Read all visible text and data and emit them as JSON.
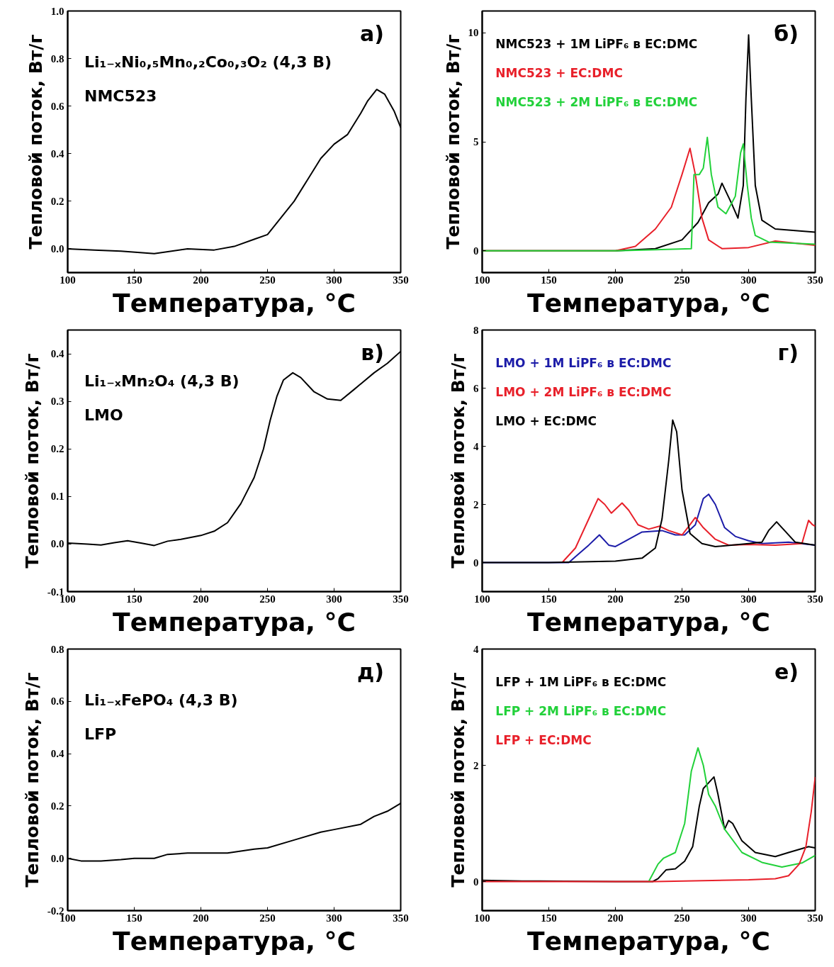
{
  "chart_data": [
    {
      "type": "line",
      "title": "а)",
      "xlabel": "Температура, °C",
      "ylabel": "Тепловой поток, Вт/г",
      "annotations": [
        "Li₁₋ₓNi₀,₅Mn₀,₂Co₀,₃O₂ (4,3 В)",
        "NMC523"
      ],
      "xlim": [
        100,
        350
      ],
      "xticks": [
        100,
        150,
        200,
        250,
        300,
        350
      ],
      "ylim": [
        -0.1,
        1.0
      ],
      "yticks": [
        {
          "value": 0,
          "label": "0.0"
        },
        {
          "value": 0.2,
          "label": "0.2"
        },
        {
          "value": 0.4,
          "label": "0.4"
        },
        {
          "value": 0.6,
          "label": "0.6"
        },
        {
          "value": 0.8,
          "label": "0.8"
        },
        {
          "value": 1.0,
          "label": "1.0"
        }
      ],
      "grid": false,
      "legend": false,
      "series": [
        {
          "color": "#000000",
          "x": [
            100,
            120,
            140,
            165,
            190,
            210,
            225,
            240,
            250,
            260,
            270,
            280,
            290,
            300,
            310,
            320,
            325,
            332,
            338,
            345,
            350
          ],
          "values": [
            0,
            -0.005,
            -0.01,
            -0.02,
            0,
            -0.005,
            0.01,
            0.04,
            0.06,
            0.13,
            0.2,
            0.29,
            0.38,
            0.44,
            0.48,
            0.57,
            0.62,
            0.67,
            0.65,
            0.58,
            0.51
          ]
        }
      ]
    },
    {
      "type": "line",
      "title": "б)",
      "xlabel": "Температура, °C",
      "ylabel": "Тепловой поток, Вт/г",
      "xlim": [
        100,
        350
      ],
      "xticks": [
        100,
        150,
        200,
        250,
        300,
        350
      ],
      "ylim": [
        -1,
        11
      ],
      "yticks": [
        0,
        5,
        10
      ],
      "grid": false,
      "legend": "top left",
      "series": [
        {
          "name": "NMC523 + 1M LiPF₆ в EC:DMC",
          "color": "#000000",
          "x": [
            100,
            150,
            200,
            230,
            250,
            262,
            270,
            277,
            280,
            287,
            292,
            296,
            298,
            300,
            302,
            305,
            310,
            320,
            350
          ],
          "values": [
            0,
            0,
            0,
            0.1,
            0.5,
            1.3,
            2.2,
            2.6,
            3.1,
            2.2,
            1.5,
            3,
            7,
            9.9,
            7,
            3,
            1.4,
            1.0,
            0.85
          ]
        },
        {
          "name": "NMC523 + EC:DMC",
          "color": "#e8202a",
          "x": [
            100,
            150,
            200,
            215,
            230,
            242,
            250,
            256,
            260,
            265,
            270,
            280,
            300,
            320,
            350
          ],
          "values": [
            0,
            0,
            0,
            0.2,
            1.0,
            2.0,
            3.5,
            4.7,
            3.5,
            1.5,
            0.5,
            0.1,
            0.15,
            0.45,
            0.25
          ]
        },
        {
          "name": "NMC523 + 2M LiPF₆ в EC:DMC",
          "color": "#22d13a",
          "x": [
            100,
            150,
            200,
            230,
            257,
            259,
            263,
            266,
            269,
            272,
            277,
            283,
            290,
            294,
            296,
            299,
            302,
            305,
            315,
            350
          ],
          "values": [
            0,
            0,
            0,
            0.05,
            0.1,
            3.5,
            3.5,
            3.8,
            5.2,
            3.5,
            2.0,
            1.7,
            2.5,
            4.5,
            4.9,
            3,
            1.5,
            0.7,
            0.4,
            0.3
          ]
        }
      ]
    },
    {
      "type": "line",
      "title": "в)",
      "xlabel": "Температура, °C",
      "ylabel": "Тепловой поток, Вт/г",
      "annotations": [
        "Li₁₋ₓMn₂O₄ (4,3 В)",
        "LMO"
      ],
      "xlim": [
        100,
        350
      ],
      "xticks": [
        100,
        150,
        200,
        250,
        300,
        350
      ],
      "ylim": [
        -0.1,
        0.45
      ],
      "yticks": [
        {
          "value": -0.1,
          "label": "-0.1"
        },
        {
          "value": 0,
          "label": "0.0"
        },
        0.1,
        0.2,
        0.3,
        0.4
      ],
      "grid": false,
      "legend": false,
      "series": [
        {
          "color": "#000000",
          "x": [
            100,
            115,
            125,
            135,
            145,
            155,
            165,
            175,
            185,
            200,
            210,
            220,
            230,
            240,
            247,
            252,
            257,
            262,
            269,
            275,
            285,
            295,
            305,
            315,
            330,
            340,
            350
          ],
          "values": [
            0.002,
            0.0,
            -0.002,
            0.003,
            0.007,
            0.002,
            -0.003,
            0.006,
            0.01,
            0.018,
            0.027,
            0.045,
            0.085,
            0.14,
            0.2,
            0.26,
            0.31,
            0.345,
            0.36,
            0.35,
            0.32,
            0.305,
            0.302,
            0.325,
            0.36,
            0.38,
            0.405
          ]
        }
      ]
    },
    {
      "type": "line",
      "title": "г)",
      "xlabel": "Температура, °C",
      "ylabel": "Тепловой поток, Вт/г",
      "xlim": [
        100,
        350
      ],
      "xticks": [
        100,
        150,
        200,
        250,
        300,
        350
      ],
      "ylim": [
        -1,
        8
      ],
      "yticks": [
        0,
        2,
        4,
        6,
        8
      ],
      "grid": false,
      "legend": "top left",
      "series": [
        {
          "name": "LMO + 1M LiPF₆ в EC:DMC",
          "color": "#1c1ca8",
          "x": [
            100,
            165,
            170,
            180,
            188,
            195,
            200,
            210,
            220,
            235,
            245,
            252,
            260,
            266,
            270,
            275,
            282,
            290,
            300,
            310,
            330,
            350
          ],
          "values": [
            0,
            0,
            0.2,
            0.6,
            0.95,
            0.6,
            0.55,
            0.8,
            1.05,
            1.1,
            0.95,
            0.95,
            1.3,
            2.2,
            2.35,
            2.0,
            1.2,
            0.9,
            0.75,
            0.65,
            0.7,
            0.6
          ]
        },
        {
          "name": "LMO + 2M LiPF₆ в EC:DMC",
          "color": "#e8202a",
          "x": [
            160,
            170,
            180,
            187,
            192,
            197,
            205,
            210,
            217,
            225,
            233,
            240,
            250,
            256,
            260,
            266,
            275,
            285,
            300,
            320,
            340,
            345,
            348,
            350
          ],
          "values": [
            0,
            0.5,
            1.5,
            2.2,
            2.0,
            1.7,
            2.05,
            1.8,
            1.3,
            1.15,
            1.25,
            1.1,
            0.95,
            1.3,
            1.55,
            1.2,
            0.8,
            0.6,
            0.62,
            0.6,
            0.65,
            1.45,
            1.3,
            1.25
          ]
        },
        {
          "name": "LMO + EC:DMC",
          "color": "#000000",
          "x": [
            100,
            150,
            200,
            220,
            230,
            235,
            240,
            243,
            246,
            250,
            256,
            265,
            275,
            300,
            310,
            315,
            321,
            327,
            335,
            350
          ],
          "values": [
            0,
            0,
            0.05,
            0.15,
            0.5,
            1.5,
            3.5,
            4.9,
            4.5,
            2.5,
            1.0,
            0.65,
            0.55,
            0.65,
            0.7,
            1.1,
            1.4,
            1.1,
            0.7,
            0.6
          ]
        }
      ]
    },
    {
      "type": "line",
      "title": "д)",
      "xlabel": "Температура, °C",
      "ylabel": "Тепловой поток, Вт/г",
      "annotations": [
        "Li₁₋ₓFePO₄ (4,3 В)",
        "LFP"
      ],
      "xlim": [
        100,
        350
      ],
      "xticks": [
        100,
        150,
        200,
        250,
        300,
        350
      ],
      "ylim": [
        -0.2,
        0.8
      ],
      "yticks": [
        {
          "value": -0.2,
          "label": "-0.2"
        },
        {
          "value": 0,
          "label": "0.0"
        },
        0.2,
        0.4,
        0.6,
        0.8
      ],
      "grid": false,
      "legend": false,
      "series": [
        {
          "color": "#000000",
          "x": [
            100,
            110,
            125,
            140,
            150,
            165,
            175,
            190,
            200,
            220,
            240,
            250,
            270,
            290,
            300,
            320,
            330,
            340,
            350
          ],
          "values": [
            0.0,
            -0.01,
            -0.01,
            -0.005,
            0.0,
            0.0,
            0.015,
            0.02,
            0.02,
            0.02,
            0.035,
            0.04,
            0.07,
            0.1,
            0.11,
            0.13,
            0.16,
            0.18,
            0.21
          ]
        }
      ]
    },
    {
      "type": "line",
      "title": "е)",
      "xlabel": "Температура, °C",
      "ylabel": "Тепловой поток, Вт/г",
      "xlim": [
        100,
        350
      ],
      "xticks": [
        100,
        150,
        200,
        250,
        300,
        350
      ],
      "ylim": [
        -0.5,
        4
      ],
      "yticks": [
        0,
        2,
        4
      ],
      "grid": false,
      "legend": "top left",
      "series": [
        {
          "name": "LFP + 1M LiPF₆ в EC:DMC",
          "color": "#000000",
          "x": [
            100,
            130,
            200,
            228,
            232,
            238,
            245,
            252,
            258,
            263,
            266,
            270,
            274,
            277,
            282,
            285,
            288,
            295,
            305,
            320,
            330,
            345,
            350
          ],
          "values": [
            0.02,
            0.01,
            0,
            0,
            0.05,
            0.2,
            0.22,
            0.35,
            0.6,
            1.3,
            1.6,
            1.7,
            1.8,
            1.5,
            0.9,
            1.05,
            1.0,
            0.7,
            0.5,
            0.43,
            0.5,
            0.6,
            0.58
          ]
        },
        {
          "name": "LFP + 2M LiPF₆ в EC:DMC",
          "color": "#22d13a",
          "x": [
            225,
            232,
            236,
            245,
            252,
            257,
            262,
            266,
            270,
            275,
            282,
            295,
            310,
            325,
            340,
            350
          ],
          "values": [
            0,
            0.3,
            0.4,
            0.5,
            1.0,
            1.9,
            2.3,
            2.0,
            1.5,
            1.3,
            0.9,
            0.5,
            0.33,
            0.25,
            0.32,
            0.45
          ]
        },
        {
          "name": "LFP + EC:DMC",
          "color": "#e8202a",
          "x": [
            100,
            150,
            200,
            230,
            300,
            320,
            330,
            338,
            343,
            347,
            350
          ],
          "values": [
            0,
            0,
            0,
            0,
            0.03,
            0.05,
            0.1,
            0.3,
            0.6,
            1.2,
            1.8
          ]
        }
      ]
    }
  ]
}
